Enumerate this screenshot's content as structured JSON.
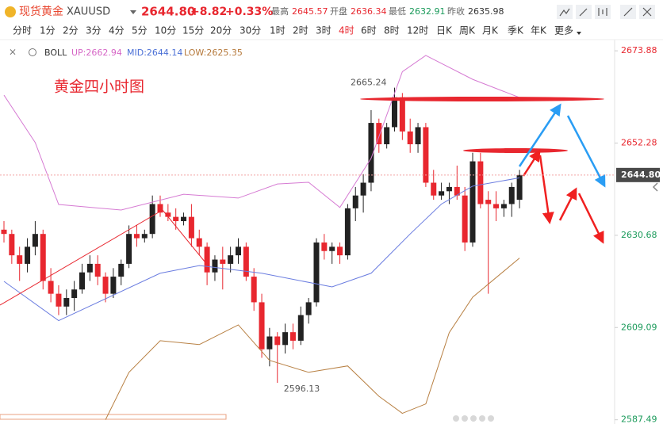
{
  "header": {
    "name": "现货黄金",
    "symbol": "XAUUSD",
    "price": "2644.80",
    "change": "+8.82",
    "change_pct": "+0.33%",
    "stats": [
      {
        "label": "最高",
        "value": "2645.57",
        "color": "#e8272f"
      },
      {
        "label": "开盘",
        "value": "2636.34",
        "color": "#e8272f"
      },
      {
        "label": "最低",
        "value": "2632.91",
        "color": "#1a9a5a"
      },
      {
        "label": "昨收",
        "value": "2635.98",
        "color": "#333333"
      }
    ]
  },
  "periods": [
    "分时",
    "1分",
    "2分",
    "3分",
    "4分",
    "5分",
    "10分",
    "15分",
    "20分",
    "30分",
    "1时",
    "2时",
    "3时",
    "4时",
    "6时",
    "8时",
    "12时",
    "日K",
    "周K",
    "月K",
    "季K",
    "年K",
    "更多"
  ],
  "active_period": 13,
  "indicator": {
    "name": "BOLL",
    "up": "UP:2662.94",
    "mid": "MID:2644.14",
    "low": "LOW:2625.35"
  },
  "chart_data": {
    "type": "candlestick",
    "title": "黄金四小时图",
    "up_color": "#222222",
    "down_color": "#e8272f",
    "ylim": [
      2586.5,
      2676.5
    ],
    "yticks": [
      2673.88,
      2652.28,
      2630.68,
      2609.09,
      2587.49
    ],
    "last_price": {
      "value": 2644.8,
      "label": "2644.80"
    },
    "annotations": [
      {
        "text": "2665.24",
        "candle": 50
      },
      {
        "text": "2596.13",
        "candle": 35
      }
    ],
    "candles": [
      [
        2632,
        2634,
        2629,
        2631
      ],
      [
        2631,
        2632,
        2624,
        2626
      ],
      [
        2626,
        2628,
        2620,
        2624
      ],
      [
        2624,
        2630,
        2622,
        2628
      ],
      [
        2628,
        2634,
        2626,
        2631
      ],
      [
        2631,
        2632,
        2618,
        2620
      ],
      [
        2620,
        2623,
        2615,
        2617
      ],
      [
        2617,
        2619,
        2612,
        2614
      ],
      [
        2614,
        2618,
        2612,
        2616
      ],
      [
        2616,
        2620,
        2613,
        2618
      ],
      [
        2618,
        2624,
        2617,
        2622
      ],
      [
        2622,
        2626,
        2620,
        2624
      ],
      [
        2624,
        2626,
        2619,
        2621
      ],
      [
        2621,
        2622,
        2615,
        2617
      ],
      [
        2617,
        2623,
        2616,
        2621
      ],
      [
        2621,
        2625,
        2619,
        2624
      ],
      [
        2624,
        2633,
        2623,
        2631
      ],
      [
        2631,
        2633,
        2628,
        2630
      ],
      [
        2630,
        2632,
        2629,
        2631
      ],
      [
        2631,
        2640,
        2630,
        2638
      ],
      [
        2638,
        2640,
        2635,
        2636
      ],
      [
        2636,
        2638,
        2634,
        2635
      ],
      [
        2635,
        2637,
        2632,
        2634
      ],
      [
        2634,
        2636,
        2633,
        2635
      ],
      [
        2635,
        2638,
        2628,
        2630
      ],
      [
        2630,
        2632,
        2626,
        2628
      ],
      [
        2628,
        2629,
        2619,
        2622
      ],
      [
        2622,
        2626,
        2620,
        2625
      ],
      [
        2625,
        2628,
        2618,
        2624
      ],
      [
        2624,
        2628,
        2622,
        2626
      ],
      [
        2626,
        2630,
        2624,
        2628
      ],
      [
        2628,
        2629,
        2620,
        2621
      ],
      [
        2621,
        2623,
        2613,
        2615
      ],
      [
        2615,
        2617,
        2602,
        2604
      ],
      [
        2604,
        2609,
        2600,
        2607
      ],
      [
        2607,
        2608,
        2596.13,
        2605
      ],
      [
        2605,
        2610,
        2603,
        2608
      ],
      [
        2608,
        2610,
        2604,
        2606
      ],
      [
        2606,
        2614,
        2605,
        2612
      ],
      [
        2612,
        2616,
        2610,
        2615
      ],
      [
        2615,
        2630,
        2614,
        2629
      ],
      [
        2629,
        2631,
        2625,
        2627
      ],
      [
        2627,
        2629,
        2624,
        2628
      ],
      [
        2628,
        2629,
        2624,
        2626
      ],
      [
        2626,
        2638,
        2625,
        2637
      ],
      [
        2637,
        2642,
        2634,
        2640
      ],
      [
        2640,
        2645,
        2636,
        2643
      ],
      [
        2643,
        2660,
        2641,
        2657
      ],
      [
        2657,
        2658,
        2650,
        2652
      ],
      [
        2652,
        2657,
        2651,
        2656
      ],
      [
        2656,
        2665.24,
        2655,
        2663
      ],
      [
        2663,
        2664,
        2653,
        2655
      ],
      [
        2655,
        2658,
        2650,
        2652
      ],
      [
        2652,
        2657,
        2650,
        2656
      ],
      [
        2656,
        2657,
        2642,
        2643
      ],
      [
        2643,
        2646,
        2639,
        2640
      ],
      [
        2640,
        2643,
        2639,
        2641
      ],
      [
        2641,
        2643,
        2638,
        2642
      ],
      [
        2642,
        2647,
        2639,
        2640
      ],
      [
        2640,
        2642,
        2627,
        2629
      ],
      [
        2629,
        2650,
        2628,
        2648
      ],
      [
        2648,
        2650,
        2637,
        2638
      ],
      [
        2639,
        2641,
        2617,
        2638
      ],
      [
        2638,
        2641,
        2634,
        2637
      ],
      [
        2637,
        2639,
        2635,
        2638
      ],
      [
        2638,
        2643,
        2635,
        2642
      ],
      [
        2639,
        2646,
        2637,
        2644.8
      ]
    ],
    "series": [
      {
        "name": "UP",
        "color": "#d67bd3",
        "x": [
          0,
          4,
          7,
          15,
          23,
          30,
          35,
          39,
          43,
          47,
          51,
          54,
          60,
          66
        ],
        "values": [
          2663.5,
          2652.4,
          2637.9,
          2636.6,
          2640.3,
          2639.4,
          2642.7,
          2643.1,
          2637.2,
          2648.7,
          2669,
          2672.8,
          2667.2,
          2662.94
        ]
      },
      {
        "name": "MID",
        "color": "#6b7de0",
        "x": [
          0,
          7,
          20,
          25,
          33,
          42,
          47,
          52,
          56,
          60,
          66
        ],
        "values": [
          2619.9,
          2610.7,
          2621.8,
          2623.6,
          2621.8,
          2618.6,
          2621.8,
          2631,
          2638,
          2642.2,
          2644.14
        ]
      },
      {
        "name": "LOW",
        "color": "#b88043",
        "x": [
          13,
          16,
          20,
          25,
          30,
          34,
          39,
          44,
          48,
          51,
          54,
          57,
          60,
          66
        ],
        "values": [
          2587.5,
          2598.6,
          2606,
          2605.1,
          2609.7,
          2601.4,
          2598.6,
          2600.1,
          2593,
          2589,
          2591.2,
          2607.9,
          2616.2,
          2625.35
        ]
      }
    ]
  }
}
